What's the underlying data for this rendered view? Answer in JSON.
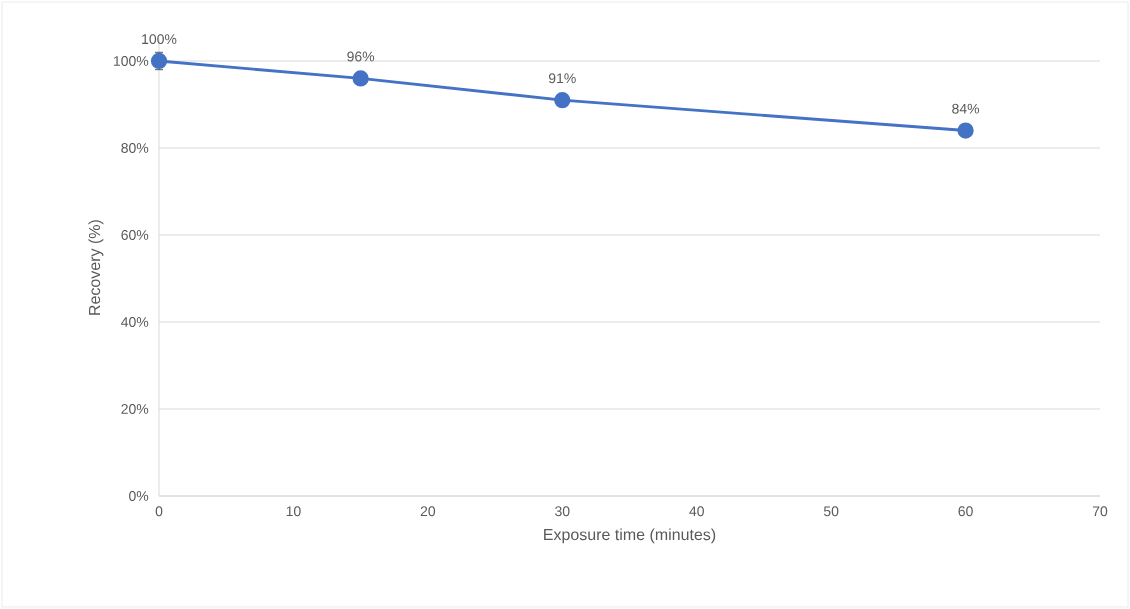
{
  "chart_data": {
    "type": "line",
    "xlabel": "Exposure time (minutes)",
    "ylabel": "Recovery (%)",
    "x": [
      0,
      15,
      30,
      60
    ],
    "values": [
      100,
      96,
      91,
      84
    ],
    "value_labels": [
      "100%",
      "96%",
      "91%",
      "84%"
    ],
    "errors": [
      2,
      null,
      null,
      null
    ],
    "color": "#4472c4",
    "marker": "circle",
    "grid": "y",
    "xlim": [
      0,
      70
    ],
    "xticks": [
      0,
      10,
      20,
      30,
      40,
      50,
      60,
      70
    ],
    "ylim": [
      0,
      105
    ],
    "yticks": [
      {
        "value": 0,
        "label": "0%"
      },
      {
        "value": 20,
        "label": "20%"
      },
      {
        "value": 40,
        "label": "40%"
      },
      {
        "value": 60,
        "label": "60%"
      },
      {
        "value": 80,
        "label": "80%"
      },
      {
        "value": 100,
        "label": "100%"
      }
    ]
  }
}
